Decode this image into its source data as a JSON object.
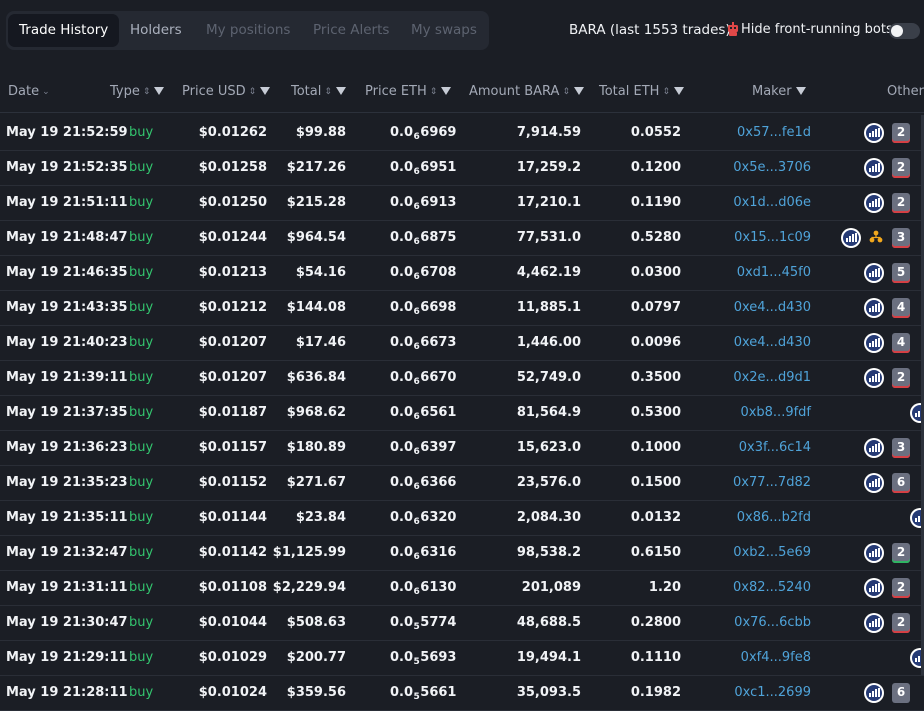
{
  "tabs": [
    {
      "label": "Trade History",
      "active": true
    },
    {
      "label": "Holders",
      "active": false
    },
    {
      "label": "My positions",
      "active": false
    },
    {
      "label": "Price Alerts",
      "active": false
    },
    {
      "label": "My swaps",
      "active": false
    }
  ],
  "info_text": "BARA (last 1553 trades)",
  "bots_label": "Hide front-running bots",
  "bots_toggle_on": false,
  "columns": {
    "date": "Date",
    "type": "Type",
    "price_usd": "Price USD",
    "total": "Total",
    "price_eth": "Price ETH",
    "amount": "Amount BARA",
    "total_eth": "Total ETH",
    "maker": "Maker",
    "others": "Other"
  },
  "colors": {
    "buy": "#33c46e",
    "maker_link": "#4fa3d9",
    "background": "#1b1e25"
  },
  "rows": [
    {
      "date": "May 19 21:52:59",
      "type": "buy",
      "usd": "$0.01262",
      "total": "$99.88",
      "eth_pre": "0.0",
      "eth_sub": "6",
      "eth_post": "6969",
      "amount": "7,914.59",
      "total_eth": "0.0552",
      "maker": "0x57...fe1d",
      "icons": [
        "uniswap-icon"
      ],
      "count": "2",
      "count_color": "red"
    },
    {
      "date": "May 19 21:52:35",
      "type": "buy",
      "usd": "$0.01258",
      "total": "$217.26",
      "eth_pre": "0.0",
      "eth_sub": "6",
      "eth_post": "6951",
      "amount": "17,259.2",
      "total_eth": "0.1200",
      "maker": "0x5e...3706",
      "icons": [
        "uniswap-icon"
      ],
      "count": "2",
      "count_color": "red"
    },
    {
      "date": "May 19 21:51:11",
      "type": "buy",
      "usd": "$0.01250",
      "total": "$215.28",
      "eth_pre": "0.0",
      "eth_sub": "6",
      "eth_post": "6913",
      "amount": "17,210.1",
      "total_eth": "0.1190",
      "maker": "0x1d...d06e",
      "icons": [
        "uniswap-icon"
      ],
      "count": "2",
      "count_color": "red"
    },
    {
      "date": "May 19 21:48:47",
      "type": "buy",
      "usd": "$0.01244",
      "total": "$964.54",
      "eth_pre": "0.0",
      "eth_sub": "6",
      "eth_post": "6875",
      "amount": "77,531.0",
      "total_eth": "0.5280",
      "maker": "0x15...1c09",
      "icons": [
        "uniswap-icon",
        "tree-icon"
      ],
      "count": "3",
      "count_color": "red"
    },
    {
      "date": "May 19 21:46:35",
      "type": "buy",
      "usd": "$0.01213",
      "total": "$54.16",
      "eth_pre": "0.0",
      "eth_sub": "6",
      "eth_post": "6708",
      "amount": "4,462.19",
      "total_eth": "0.0300",
      "maker": "0xd1...45f0",
      "icons": [
        "uniswap-icon"
      ],
      "count": "5",
      "count_color": "red"
    },
    {
      "date": "May 19 21:43:35",
      "type": "buy",
      "usd": "$0.01212",
      "total": "$144.08",
      "eth_pre": "0.0",
      "eth_sub": "6",
      "eth_post": "6698",
      "amount": "11,885.1",
      "total_eth": "0.0797",
      "maker": "0xe4...d430",
      "icons": [
        "uniswap-icon"
      ],
      "count": "4",
      "count_color": "red"
    },
    {
      "date": "May 19 21:40:23",
      "type": "buy",
      "usd": "$0.01207",
      "total": "$17.46",
      "eth_pre": "0.0",
      "eth_sub": "6",
      "eth_post": "6673",
      "amount": "1,446.00",
      "total_eth": "0.0096",
      "maker": "0xe4...d430",
      "icons": [
        "uniswap-icon"
      ],
      "count": "4",
      "count_color": "red"
    },
    {
      "date": "May 19 21:39:11",
      "type": "buy",
      "usd": "$0.01207",
      "total": "$636.84",
      "eth_pre": "0.0",
      "eth_sub": "6",
      "eth_post": "6670",
      "amount": "52,749.0",
      "total_eth": "0.3500",
      "maker": "0x2e...d9d1",
      "icons": [
        "uniswap-icon"
      ],
      "count": "2",
      "count_color": "red"
    },
    {
      "date": "May 19 21:37:35",
      "type": "buy",
      "usd": "$0.01187",
      "total": "$968.62",
      "eth_pre": "0.0",
      "eth_sub": "6",
      "eth_post": "6561",
      "amount": "81,564.9",
      "total_eth": "0.5300",
      "maker": "0xb8...9fdf",
      "icons": [
        "uniswap-icon-edge"
      ],
      "count": "",
      "count_color": ""
    },
    {
      "date": "May 19 21:36:23",
      "type": "buy",
      "usd": "$0.01157",
      "total": "$180.89",
      "eth_pre": "0.0",
      "eth_sub": "6",
      "eth_post": "6397",
      "amount": "15,623.0",
      "total_eth": "0.1000",
      "maker": "0x3f...6c14",
      "icons": [
        "uniswap-icon"
      ],
      "count": "3",
      "count_color": "red"
    },
    {
      "date": "May 19 21:35:23",
      "type": "buy",
      "usd": "$0.01152",
      "total": "$271.67",
      "eth_pre": "0.0",
      "eth_sub": "6",
      "eth_post": "6366",
      "amount": "23,576.0",
      "total_eth": "0.1500",
      "maker": "0x77...7d82",
      "icons": [
        "uniswap-icon"
      ],
      "count": "6",
      "count_color": "red"
    },
    {
      "date": "May 19 21:35:11",
      "type": "buy",
      "usd": "$0.01144",
      "total": "$23.84",
      "eth_pre": "0.0",
      "eth_sub": "6",
      "eth_post": "6320",
      "amount": "2,084.30",
      "total_eth": "0.0132",
      "maker": "0x86...b2fd",
      "icons": [
        "uniswap-icon-edge"
      ],
      "count": "",
      "count_color": ""
    },
    {
      "date": "May 19 21:32:47",
      "type": "buy",
      "usd": "$0.01142",
      "total": "$1,125.99",
      "eth_pre": "0.0",
      "eth_sub": "6",
      "eth_post": "6316",
      "amount": "98,538.2",
      "total_eth": "0.6150",
      "maker": "0xb2...5e69",
      "icons": [
        "uniswap-icon"
      ],
      "count": "2",
      "count_color": "green"
    },
    {
      "date": "May 19 21:31:11",
      "type": "buy",
      "usd": "$0.01108",
      "total": "$2,229.94",
      "eth_pre": "0.0",
      "eth_sub": "6",
      "eth_post": "6130",
      "amount": "201,089",
      "total_eth": "1.20",
      "maker": "0x82...5240",
      "icons": [
        "uniswap-icon"
      ],
      "count": "2",
      "count_color": "red"
    },
    {
      "date": "May 19 21:30:47",
      "type": "buy",
      "usd": "$0.01044",
      "total": "$508.63",
      "eth_pre": "0.0",
      "eth_sub": "5",
      "eth_post": "5774",
      "amount": "48,688.5",
      "total_eth": "0.2800",
      "maker": "0x76...6cbb",
      "icons": [
        "uniswap-icon"
      ],
      "count": "2",
      "count_color": "red"
    },
    {
      "date": "May 19 21:29:11",
      "type": "buy",
      "usd": "$0.01029",
      "total": "$200.77",
      "eth_pre": "0.0",
      "eth_sub": "5",
      "eth_post": "5693",
      "amount": "19,494.1",
      "total_eth": "0.1110",
      "maker": "0xf4...9fe8",
      "icons": [
        "uniswap-icon-edge"
      ],
      "count": "",
      "count_color": ""
    },
    {
      "date": "May 19 21:28:11",
      "type": "buy",
      "usd": "$0.01024",
      "total": "$359.56",
      "eth_pre": "0.0",
      "eth_sub": "5",
      "eth_post": "5661",
      "amount": "35,093.5",
      "total_eth": "0.1982",
      "maker": "0xc1...2699",
      "icons": [
        "uniswap-icon"
      ],
      "count": "6",
      "count_color": "none"
    }
  ]
}
